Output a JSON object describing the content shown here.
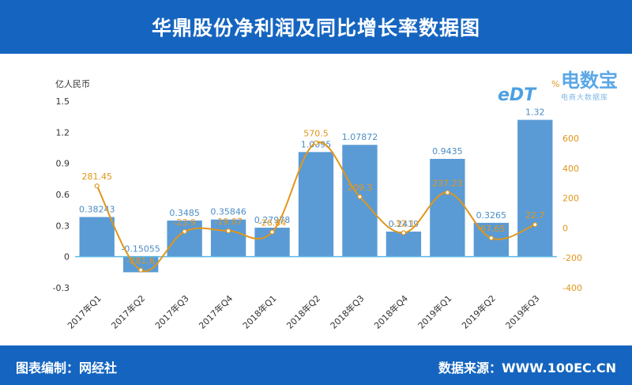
{
  "header": {
    "title": "华鼎股份净利润及同比增长率数据图"
  },
  "footer": {
    "left": "图表编制：网经社",
    "right": "数据来源：WWW.100EC.CN"
  },
  "logo": {
    "brand": "电数宝",
    "sub": "电商大数据库",
    "edt": "eDT"
  },
  "colors": {
    "header_bg": "#1565c0",
    "bar": "#5b9bd5",
    "line": "#e0961b",
    "bar_label": "#4a8cc7",
    "line_label": "#e0961b"
  },
  "chart_data": {
    "type": "bar",
    "categories": [
      "2017年Q1",
      "2017年Q2",
      "2017年Q3",
      "2017年Q4",
      "2018年Q1",
      "2018年Q2",
      "2018年Q3",
      "2018年Q4",
      "2019年Q1",
      "2019年Q2",
      "2019年Q3"
    ],
    "series": [
      {
        "name": "",
        "type": "bar",
        "axis": "left",
        "values": [
          0.38243,
          -0.15055,
          0.3485,
          0.35846,
          0.27978,
          1.0095,
          1.07872,
          0.2419,
          0.9435,
          0.3265,
          1.32
        ],
        "labels": [
          "0.38243",
          "-0.15055",
          "0.3485",
          "0.35846",
          "0.27978",
          "1.0095",
          "1.07872",
          "0.2419",
          "0.9435",
          "0.3265",
          "1.32"
        ]
      },
      {
        "name": "",
        "type": "line",
        "axis": "right",
        "values": [
          281.45,
          -281.6,
          -23.9,
          -19.07,
          -26.84,
          570.5,
          209.3,
          -32.1,
          237.23,
          -67.65,
          22.7
        ],
        "labels": [
          "281.45",
          "-281.6",
          "-23.9",
          "-19.07",
          "-26.84",
          "570.5",
          "209.3",
          "-32.1",
          "237.23",
          "-67.65",
          "22.7"
        ]
      }
    ],
    "ylabel_left": "亿人民币",
    "ylabel_right": "%",
    "ylim_left": [
      -0.3,
      1.5
    ],
    "yticks_left": [
      "1.5",
      "1.2",
      "0.9",
      "0.6",
      "0.3",
      "0",
      "-0.3"
    ],
    "ylim_right": [
      -400,
      600
    ],
    "yticks_right": [
      "600",
      "400",
      "200",
      "0",
      "-200",
      "-400"
    ],
    "grid": false
  }
}
